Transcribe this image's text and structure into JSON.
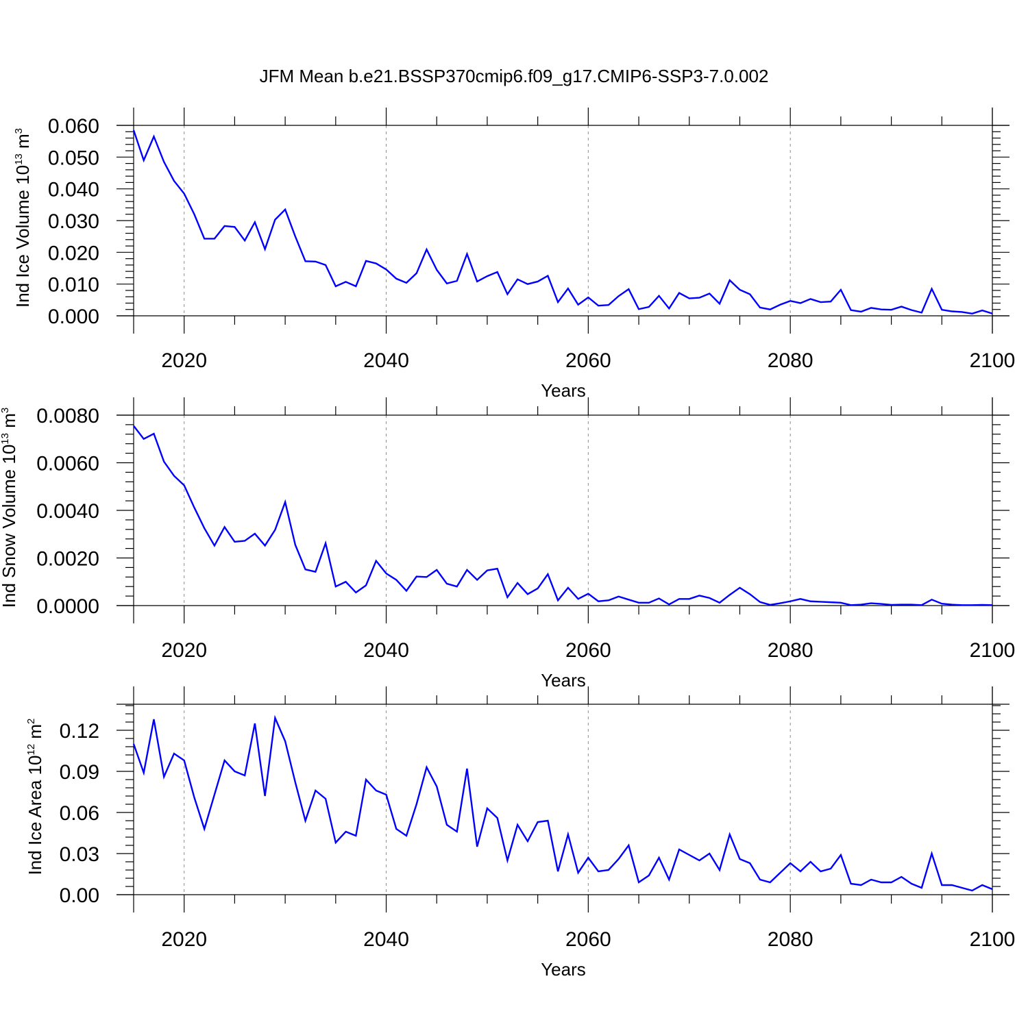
{
  "title": "JFM Mean b.e21.BSSP370cmip6.f09_g17.CMIP6-SSP3-7.0.002",
  "colors": {
    "line": "#0000ff",
    "axis": "#000000",
    "grid": "#8c8c8c"
  },
  "chart_data": [
    {
      "type": "line",
      "title": "",
      "xlabel": "Years",
      "ylabel": "Ind Ice Volume 10",
      "ylabel_sup": "13",
      "ylabel_unit": "m",
      "ylabel_unit_sup": "3",
      "xlim": [
        2015,
        2100
      ],
      "ylim": [
        0.0,
        0.06
      ],
      "xticks": [
        2020,
        2040,
        2060,
        2080,
        2100
      ],
      "xtick_labels": [
        "2020",
        "2040",
        "2060",
        "2080",
        "2100"
      ],
      "yticks": [
        0.0,
        0.01,
        0.02,
        0.03,
        0.04,
        0.05,
        0.06
      ],
      "ytick_labels": [
        "0.000",
        "0.010",
        "0.020",
        "0.030",
        "0.040",
        "0.050",
        "0.060"
      ],
      "grid": "x-dashed",
      "x": [
        2015,
        2016,
        2017,
        2018,
        2019,
        2020,
        2021,
        2022,
        2023,
        2024,
        2025,
        2026,
        2027,
        2028,
        2029,
        2030,
        2031,
        2032,
        2033,
        2034,
        2035,
        2036,
        2037,
        2038,
        2039,
        2040,
        2041,
        2042,
        2043,
        2044,
        2045,
        2046,
        2047,
        2048,
        2049,
        2050,
        2051,
        2052,
        2053,
        2054,
        2055,
        2056,
        2057,
        2058,
        2059,
        2060,
        2061,
        2062,
        2063,
        2064,
        2065,
        2066,
        2067,
        2068,
        2069,
        2070,
        2071,
        2072,
        2073,
        2074,
        2075,
        2076,
        2077,
        2078,
        2079,
        2080,
        2081,
        2082,
        2083,
        2084,
        2085,
        2086,
        2087,
        2088,
        2089,
        2090,
        2091,
        2092,
        2093,
        2094,
        2095,
        2096,
        2097,
        2098,
        2099,
        2100
      ],
      "series": [
        {
          "values": [
            0.0585,
            0.049,
            0.0565,
            0.0485,
            0.0425,
            0.0385,
            0.032,
            0.0243,
            0.0243,
            0.0283,
            0.028,
            0.0237,
            0.0295,
            0.021,
            0.0303,
            0.0335,
            0.025,
            0.0172,
            0.0171,
            0.016,
            0.0093,
            0.0107,
            0.0093,
            0.0173,
            0.0165,
            0.0146,
            0.0117,
            0.0104,
            0.0134,
            0.0209,
            0.0145,
            0.0102,
            0.011,
            0.0195,
            0.0108,
            0.0125,
            0.0138,
            0.0068,
            0.0115,
            0.01,
            0.0108,
            0.0126,
            0.0043,
            0.0086,
            0.0035,
            0.0058,
            0.0032,
            0.0034,
            0.0062,
            0.0084,
            0.0021,
            0.0028,
            0.0063,
            0.0023,
            0.0072,
            0.0055,
            0.0057,
            0.007,
            0.0038,
            0.0112,
            0.0082,
            0.0068,
            0.0026,
            0.002,
            0.0035,
            0.0047,
            0.004,
            0.0053,
            0.0043,
            0.0045,
            0.0082,
            0.0018,
            0.0013,
            0.0025,
            0.002,
            0.0019,
            0.0029,
            0.0018,
            0.001,
            0.0085,
            0.0019,
            0.0014,
            0.0012,
            0.0007,
            0.0017,
            0.0007
          ]
        }
      ]
    },
    {
      "type": "line",
      "title": "",
      "xlabel": "Years",
      "ylabel": "Ind Snow Volume 10",
      "ylabel_sup": "13",
      "ylabel_unit": "m",
      "ylabel_unit_sup": "3",
      "xlim": [
        2015,
        2100
      ],
      "ylim": [
        0.0,
        0.008
      ],
      "xticks": [
        2020,
        2040,
        2060,
        2080,
        2100
      ],
      "xtick_labels": [
        "2020",
        "2040",
        "2060",
        "2080",
        "2100"
      ],
      "yticks": [
        0.0,
        0.002,
        0.004,
        0.006,
        0.008
      ],
      "ytick_labels": [
        "0.0000",
        "0.0020",
        "0.0040",
        "0.0060",
        "0.0080"
      ],
      "grid": "x-dashed",
      "x": [
        2015,
        2016,
        2017,
        2018,
        2019,
        2020,
        2021,
        2022,
        2023,
        2024,
        2025,
        2026,
        2027,
        2028,
        2029,
        2030,
        2031,
        2032,
        2033,
        2034,
        2035,
        2036,
        2037,
        2038,
        2039,
        2040,
        2041,
        2042,
        2043,
        2044,
        2045,
        2046,
        2047,
        2048,
        2049,
        2050,
        2051,
        2052,
        2053,
        2054,
        2055,
        2056,
        2057,
        2058,
        2059,
        2060,
        2061,
        2062,
        2063,
        2064,
        2065,
        2066,
        2067,
        2068,
        2069,
        2070,
        2071,
        2072,
        2073,
        2074,
        2075,
        2076,
        2077,
        2078,
        2079,
        2080,
        2081,
        2082,
        2083,
        2084,
        2085,
        2086,
        2087,
        2088,
        2089,
        2090,
        2091,
        2092,
        2093,
        2094,
        2095,
        2096,
        2097,
        2098,
        2099,
        2100
      ],
      "series": [
        {
          "values": [
            0.00755,
            0.007,
            0.00722,
            0.00605,
            0.00545,
            0.00505,
            0.00412,
            0.00325,
            0.00252,
            0.0033,
            0.00268,
            0.00272,
            0.00302,
            0.00252,
            0.00318,
            0.00435,
            0.00255,
            0.00152,
            0.00142,
            0.00262,
            0.0008,
            0.001,
            0.00055,
            0.00085,
            0.00188,
            0.00135,
            0.00108,
            0.00062,
            0.00122,
            0.0012,
            0.0015,
            0.00092,
            0.0008,
            0.0015,
            0.00108,
            0.00148,
            0.00155,
            0.00035,
            0.00095,
            0.00048,
            0.00072,
            0.00132,
            0.00022,
            0.00075,
            0.00028,
            0.0005,
            0.00018,
            0.00022,
            0.00038,
            0.00025,
            0.00012,
            0.00012,
            0.0003,
            5e-05,
            0.00028,
            0.00028,
            0.00042,
            0.00032,
            0.00012,
            0.00045,
            0.00075,
            0.00048,
            0.00015,
            3e-05,
            0.0001,
            0.00018,
            0.00028,
            0.00018,
            0.00016,
            0.00014,
            0.00012,
            2e-05,
            4e-05,
            0.0001,
            7e-05,
            3e-05,
            4e-05,
            4e-05,
            2e-05,
            0.00025,
            8e-05,
            4e-05,
            2e-05,
            2e-05,
            3e-05,
            2e-05
          ]
        }
      ]
    },
    {
      "type": "line",
      "title": "",
      "xlabel": "Years",
      "ylabel": "Ind Ice Area 10",
      "ylabel_sup": "12",
      "ylabel_unit": "m",
      "ylabel_unit_sup": "2",
      "xlim": [
        2015,
        2100
      ],
      "ylim": [
        0.0,
        0.139
      ],
      "xticks": [
        2020,
        2040,
        2060,
        2080,
        2100
      ],
      "xtick_labels": [
        "2020",
        "2040",
        "2060",
        "2080",
        "2100"
      ],
      "yticks": [
        0.0,
        0.03,
        0.06,
        0.09,
        0.12
      ],
      "ytick_labels": [
        "0.00",
        "0.03",
        "0.06",
        "0.09",
        "0.12"
      ],
      "grid": "x-dashed",
      "x": [
        2015,
        2016,
        2017,
        2018,
        2019,
        2020,
        2021,
        2022,
        2023,
        2024,
        2025,
        2026,
        2027,
        2028,
        2029,
        2030,
        2031,
        2032,
        2033,
        2034,
        2035,
        2036,
        2037,
        2038,
        2039,
        2040,
        2041,
        2042,
        2043,
        2044,
        2045,
        2046,
        2047,
        2048,
        2049,
        2050,
        2051,
        2052,
        2053,
        2054,
        2055,
        2056,
        2057,
        2058,
        2059,
        2060,
        2061,
        2062,
        2063,
        2064,
        2065,
        2066,
        2067,
        2068,
        2069,
        2070,
        2071,
        2072,
        2073,
        2074,
        2075,
        2076,
        2077,
        2078,
        2079,
        2080,
        2081,
        2082,
        2083,
        2084,
        2085,
        2086,
        2087,
        2088,
        2089,
        2090,
        2091,
        2092,
        2093,
        2094,
        2095,
        2096,
        2097,
        2098,
        2099,
        2100
      ],
      "series": [
        {
          "values": [
            0.11,
            0.089,
            0.128,
            0.086,
            0.103,
            0.098,
            0.071,
            0.048,
            0.073,
            0.098,
            0.09,
            0.087,
            0.125,
            0.072,
            0.129,
            0.112,
            0.082,
            0.054,
            0.076,
            0.07,
            0.038,
            0.046,
            0.043,
            0.084,
            0.076,
            0.073,
            0.048,
            0.043,
            0.066,
            0.093,
            0.079,
            0.051,
            0.046,
            0.092,
            0.035,
            0.063,
            0.056,
            0.025,
            0.051,
            0.039,
            0.053,
            0.054,
            0.017,
            0.044,
            0.016,
            0.027,
            0.017,
            0.018,
            0.026,
            0.036,
            0.009,
            0.014,
            0.027,
            0.011,
            0.033,
            0.029,
            0.025,
            0.03,
            0.018,
            0.044,
            0.026,
            0.023,
            0.011,
            0.009,
            0.016,
            0.023,
            0.017,
            0.024,
            0.017,
            0.019,
            0.029,
            0.008,
            0.007,
            0.011,
            0.009,
            0.009,
            0.013,
            0.008,
            0.005,
            0.03,
            0.007,
            0.007,
            0.005,
            0.003,
            0.007,
            0.004
          ]
        }
      ]
    }
  ]
}
